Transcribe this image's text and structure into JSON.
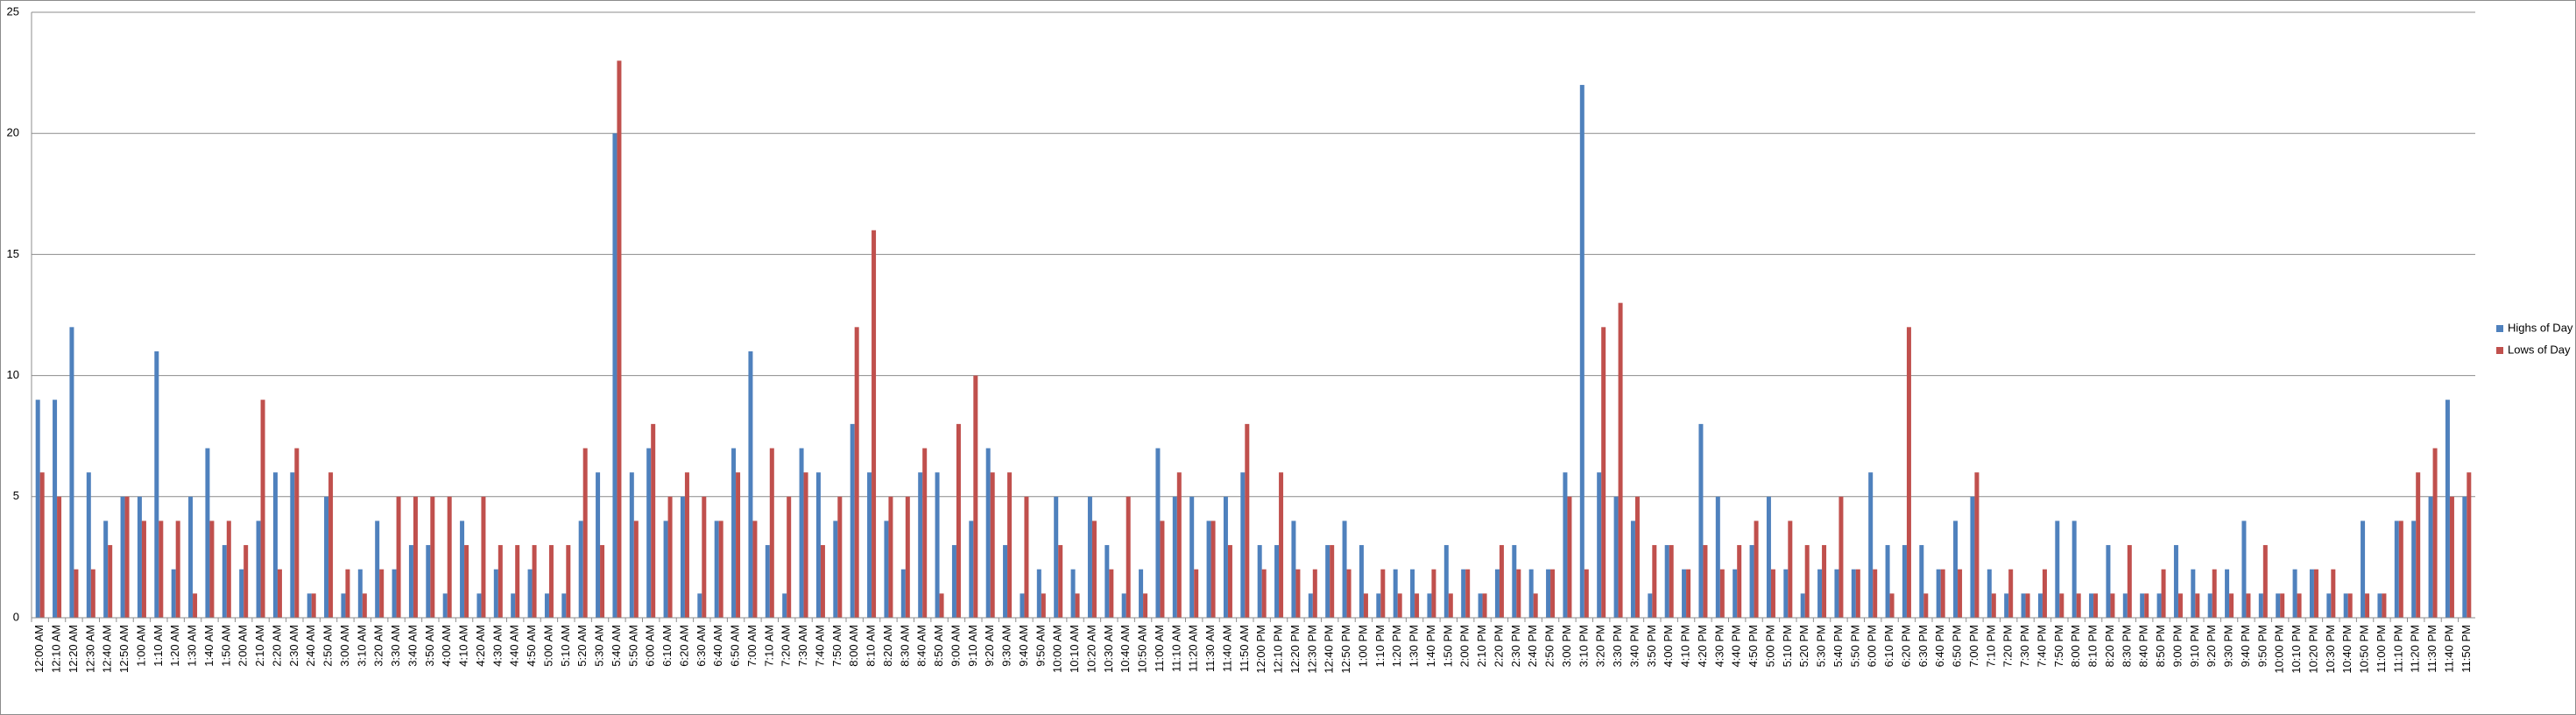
{
  "chart_data": {
    "type": "bar",
    "categories": [
      "12:00 AM",
      "12:10 AM",
      "12:20 AM",
      "12:30 AM",
      "12:40 AM",
      "12:50 AM",
      "1:00 AM",
      "1:10 AM",
      "1:20 AM",
      "1:30 AM",
      "1:40 AM",
      "1:50 AM",
      "2:00 AM",
      "2:10 AM",
      "2:20 AM",
      "2:30 AM",
      "2:40 AM",
      "2:50 AM",
      "3:00 AM",
      "3:10 AM",
      "3:20 AM",
      "3:30 AM",
      "3:40 AM",
      "3:50 AM",
      "4:00 AM",
      "4:10 AM",
      "4:20 AM",
      "4:30 AM",
      "4:40 AM",
      "4:50 AM",
      "5:00 AM",
      "5:10 AM",
      "5:20 AM",
      "5:30 AM",
      "5:40 AM",
      "5:50 AM",
      "6:00 AM",
      "6:10 AM",
      "6:20 AM",
      "6:30 AM",
      "6:40 AM",
      "6:50 AM",
      "7:00 AM",
      "7:10 AM",
      "7:20 AM",
      "7:30 AM",
      "7:40 AM",
      "7:50 AM",
      "8:00 AM",
      "8:10 AM",
      "8:20 AM",
      "8:30 AM",
      "8:40 AM",
      "8:50 AM",
      "9:00 AM",
      "9:10 AM",
      "9:20 AM",
      "9:30 AM",
      "9:40 AM",
      "9:50 AM",
      "10:00 AM",
      "10:10 AM",
      "10:20 AM",
      "10:30 AM",
      "10:40 AM",
      "10:50 AM",
      "11:00 AM",
      "11:10 AM",
      "11:20 AM",
      "11:30 AM",
      "11:40 AM",
      "11:50 AM",
      "12:00 PM",
      "12:10 PM",
      "12:20 PM",
      "12:30 PM",
      "12:40 PM",
      "12:50 PM",
      "1:00 PM",
      "1:10 PM",
      "1:20 PM",
      "1:30 PM",
      "1:40 PM",
      "1:50 PM",
      "2:00 PM",
      "2:10 PM",
      "2:20 PM",
      "2:30 PM",
      "2:40 PM",
      "2:50 PM",
      "3:00 PM",
      "3:10 PM",
      "3:20 PM",
      "3:30 PM",
      "3:40 PM",
      "3:50 PM",
      "4:00 PM",
      "4:10 PM",
      "4:20 PM",
      "4:30 PM",
      "4:40 PM",
      "4:50 PM",
      "5:00 PM",
      "5:10 PM",
      "5:20 PM",
      "5:30 PM",
      "5:40 PM",
      "5:50 PM",
      "6:00 PM",
      "6:10 PM",
      "6:20 PM",
      "6:30 PM",
      "6:40 PM",
      "6:50 PM",
      "7:00 PM",
      "7:10 PM",
      "7:20 PM",
      "7:30 PM",
      "7:40 PM",
      "7:50 PM",
      "8:00 PM",
      "8:10 PM",
      "8:20 PM",
      "8:30 PM",
      "8:40 PM",
      "8:50 PM",
      "9:00 PM",
      "9:10 PM",
      "9:20 PM",
      "9:30 PM",
      "9:40 PM",
      "9:50 PM",
      "10:00 PM",
      "10:10 PM",
      "10:20 PM",
      "10:30 PM",
      "10:40 PM",
      "10:50 PM",
      "11:00 PM",
      "11:10 PM",
      "11:20 PM",
      "11:30 PM",
      "11:40 PM",
      "11:50 PM"
    ],
    "series": [
      {
        "name": "Highs of Day",
        "color": "#4f81bd",
        "values": [
          9,
          9,
          12,
          6,
          4,
          5,
          5,
          11,
          2,
          5,
          7,
          3,
          2,
          4,
          6,
          6,
          1,
          5,
          1,
          2,
          4,
          2,
          3,
          3,
          1,
          4,
          1,
          2,
          1,
          2,
          1,
          1,
          4,
          6,
          20,
          6,
          7,
          4,
          5,
          1,
          4,
          7,
          11,
          3,
          1,
          7,
          6,
          4,
          8,
          6,
          4,
          2,
          6,
          6,
          3,
          4,
          7,
          3,
          1,
          2,
          5,
          2,
          5,
          3,
          1,
          2,
          7,
          5,
          5,
          4,
          5,
          6,
          3,
          3,
          4,
          1,
          3,
          4,
          3,
          1,
          2,
          2,
          1,
          3,
          2,
          1,
          2,
          3,
          2,
          2,
          6,
          22,
          6,
          5,
          4,
          1,
          3,
          2,
          8,
          5,
          2,
          3,
          5,
          2,
          1,
          2,
          2,
          2,
          6,
          3,
          3,
          3,
          2,
          4,
          5,
          2,
          1,
          1,
          1,
          4,
          4,
          1,
          3,
          1,
          1,
          1,
          3,
          2,
          1,
          2,
          4,
          1,
          1,
          2,
          2,
          1,
          1,
          4,
          1,
          4,
          4,
          5,
          9,
          5
        ]
      },
      {
        "name": "Lows of Day",
        "color": "#c0504d",
        "values": [
          6,
          5,
          2,
          2,
          3,
          5,
          4,
          4,
          4,
          1,
          4,
          4,
          3,
          9,
          2,
          7,
          1,
          6,
          2,
          1,
          2,
          5,
          5,
          5,
          5,
          3,
          5,
          3,
          3,
          3,
          3,
          3,
          7,
          3,
          23,
          4,
          8,
          5,
          6,
          5,
          4,
          6,
          4,
          7,
          5,
          6,
          3,
          5,
          12,
          16,
          5,
          5,
          7,
          1,
          8,
          10,
          6,
          6,
          5,
          1,
          3,
          1,
          4,
          2,
          5,
          1,
          4,
          6,
          2,
          4,
          3,
          8,
          2,
          6,
          2,
          2,
          3,
          2,
          1,
          2,
          1,
          1,
          2,
          1,
          2,
          1,
          3,
          2,
          1,
          2,
          5,
          2,
          12,
          13,
          5,
          3,
          3,
          2,
          3,
          2,
          3,
          4,
          2,
          4,
          3,
          3,
          5,
          2,
          2,
          1,
          12,
          1,
          2,
          2,
          6,
          1,
          2,
          1,
          2,
          1,
          1,
          1,
          1,
          3,
          1,
          2,
          1,
          1,
          2,
          1,
          1,
          3,
          1,
          1,
          2,
          2,
          1,
          1,
          1,
          4,
          6,
          7,
          5,
          6
        ]
      }
    ],
    "ylim": [
      0,
      25
    ],
    "yticks": [
      0,
      5,
      10,
      15,
      20,
      25
    ],
    "grid": true,
    "legend": "right"
  }
}
